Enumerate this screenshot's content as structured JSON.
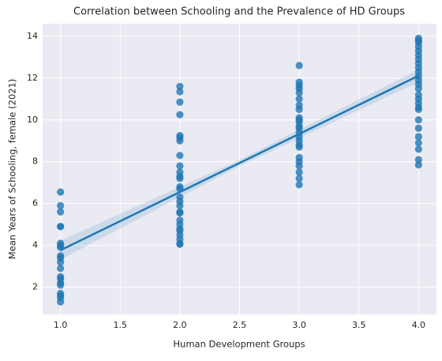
{
  "chart_data": {
    "type": "scatter",
    "title": "Correlation between Schooling and the Prevalence of HD Groups",
    "x_label": "Human Development Groups",
    "y_label": "Mean Years of Schooling, female (2021)",
    "color": "#1f77b4",
    "grid": true,
    "xlim": [
      0.85,
      4.15
    ],
    "ylim": [
      0.7,
      14.6
    ],
    "xticks": [
      {
        "value": 1.0,
        "label": "1.0"
      },
      {
        "value": 1.5,
        "label": "1.5"
      },
      {
        "value": 2.0,
        "label": "2.0"
      },
      {
        "value": 2.5,
        "label": "2.5"
      },
      {
        "value": 3.0,
        "label": "3.0"
      },
      {
        "value": 3.5,
        "label": "3.5"
      },
      {
        "value": 4.0,
        "label": "4.0"
      }
    ],
    "yticks": [
      2,
      4,
      6,
      8,
      10,
      12,
      14
    ],
    "x": [
      1,
      1,
      1,
      1,
      1,
      1,
      1,
      1,
      1,
      1,
      1,
      1,
      1,
      1,
      1,
      1,
      1,
      1,
      1,
      1,
      2,
      2,
      2,
      2,
      2,
      2,
      2,
      2,
      2,
      2,
      2,
      2,
      2,
      2,
      2,
      2,
      2,
      2,
      2,
      2,
      2,
      2,
      2,
      2,
      2,
      2,
      2,
      3,
      3,
      3,
      3,
      3,
      3,
      3,
      3,
      3,
      3,
      3,
      3,
      3,
      3,
      3,
      3,
      3,
      3,
      3,
      3,
      3,
      3,
      3,
      3,
      4,
      4,
      4,
      4,
      4,
      4,
      4,
      4,
      4,
      4,
      4,
      4,
      4,
      4,
      4,
      4,
      4,
      4,
      4,
      4,
      4,
      4,
      4,
      4,
      4,
      4
    ],
    "y": [
      6.55,
      5.9,
      5.6,
      4.9,
      4.9,
      4.1,
      4.0,
      3.9,
      3.5,
      3.4,
      3.2,
      2.9,
      2.5,
      2.4,
      2.2,
      2.1,
      1.7,
      1.6,
      1.5,
      1.3,
      11.6,
      11.35,
      10.85,
      10.25,
      9.25,
      9.15,
      9.0,
      8.3,
      7.8,
      7.5,
      7.3,
      7.2,
      6.8,
      6.7,
      6.3,
      6.1,
      5.9,
      5.6,
      5.55,
      5.2,
      5.0,
      4.8,
      4.7,
      4.5,
      4.3,
      4.1,
      4.05,
      12.6,
      11.8,
      11.65,
      11.5,
      11.3,
      11.0,
      10.7,
      10.5,
      10.1,
      10.0,
      9.9,
      9.7,
      9.6,
      9.4,
      9.2,
      9.0,
      8.8,
      8.7,
      8.2,
      8.0,
      7.8,
      7.5,
      7.2,
      6.9,
      13.9,
      13.8,
      13.7,
      13.5,
      13.3,
      13.1,
      12.9,
      12.7,
      12.5,
      12.3,
      12.1,
      11.9,
      11.7,
      11.5,
      11.2,
      11.0,
      10.8,
      10.6,
      10.5,
      10.0,
      9.6,
      9.2,
      8.9,
      8.6,
      8.1,
      7.85
    ],
    "regression": {
      "x": [
        1,
        4
      ],
      "y": [
        3.77,
        12.11
      ]
    },
    "ci": {
      "x": [
        1,
        2.5,
        4
      ],
      "lower": [
        3.32,
        7.79,
        11.81
      ],
      "upper": [
        4.22,
        8.09,
        12.41
      ]
    }
  }
}
